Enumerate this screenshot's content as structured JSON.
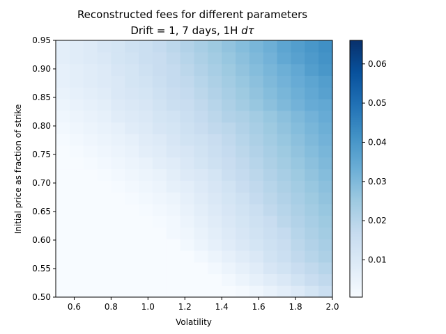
{
  "chart_data": {
    "type": "heatmap",
    "title_line1": "Reconstructed fees for different parameters",
    "title_line2": "Drift = 1, 7 days, 1H ",
    "title_math": "dτ",
    "xlabel": "Volatility",
    "ylabel": "Initial price as fraction of strike",
    "xlim": [
      0.5,
      2.0
    ],
    "ylim": [
      0.5,
      0.95
    ],
    "xticks": [
      "0.6",
      "0.8",
      "1.0",
      "1.2",
      "1.4",
      "1.6",
      "1.8",
      "2.0"
    ],
    "yticks": [
      "0.50",
      "0.55",
      "0.60",
      "0.65",
      "0.70",
      "0.75",
      "0.80",
      "0.85",
      "0.90",
      "0.95"
    ],
    "colormap": "Blues",
    "vmin": 0.0005,
    "vmax": 0.066,
    "colorbar_ticks": [
      "0.01",
      "0.02",
      "0.03",
      "0.04",
      "0.05",
      "0.06"
    ],
    "grid": false,
    "x_bins": 20,
    "y_bins": 22,
    "values_rows_bottom_to_top": [
      [
        0.0005,
        0.0005,
        0.0005,
        0.0005,
        0.0005,
        0.0005,
        0.0005,
        0.0005,
        0.0005,
        0.0005,
        0.0005,
        0.0005,
        0.0005,
        0.0015,
        0.003,
        0.005,
        0.007,
        0.009,
        0.012,
        0.015
      ],
      [
        0.0005,
        0.0005,
        0.0005,
        0.0005,
        0.0005,
        0.0005,
        0.0005,
        0.0005,
        0.0005,
        0.0005,
        0.0005,
        0.0005,
        0.002,
        0.004,
        0.006,
        0.008,
        0.01,
        0.013,
        0.016,
        0.018
      ],
      [
        0.0005,
        0.0005,
        0.0005,
        0.0005,
        0.0005,
        0.0005,
        0.0005,
        0.0005,
        0.0005,
        0.0005,
        0.0005,
        0.002,
        0.004,
        0.006,
        0.008,
        0.011,
        0.013,
        0.016,
        0.018,
        0.02
      ],
      [
        0.0005,
        0.0005,
        0.0005,
        0.0005,
        0.0005,
        0.0005,
        0.0005,
        0.0005,
        0.0005,
        0.0005,
        0.002,
        0.004,
        0.006,
        0.008,
        0.01,
        0.013,
        0.015,
        0.018,
        0.02,
        0.022
      ],
      [
        0.0005,
        0.0005,
        0.0005,
        0.0005,
        0.0005,
        0.0005,
        0.0005,
        0.0005,
        0.0005,
        0.002,
        0.004,
        0.006,
        0.008,
        0.01,
        0.012,
        0.014,
        0.016,
        0.019,
        0.021,
        0.023
      ],
      [
        0.0005,
        0.0005,
        0.0005,
        0.0005,
        0.0005,
        0.0005,
        0.0005,
        0.0005,
        0.002,
        0.003,
        0.005,
        0.007,
        0.009,
        0.011,
        0.013,
        0.015,
        0.017,
        0.02,
        0.022,
        0.024
      ],
      [
        0.0005,
        0.0005,
        0.0005,
        0.0005,
        0.0005,
        0.0005,
        0.0005,
        0.001,
        0.002,
        0.004,
        0.006,
        0.008,
        0.01,
        0.012,
        0.014,
        0.016,
        0.019,
        0.021,
        0.023,
        0.025
      ],
      [
        0.0005,
        0.0005,
        0.0005,
        0.0005,
        0.0005,
        0.0005,
        0.001,
        0.002,
        0.003,
        0.005,
        0.007,
        0.009,
        0.011,
        0.013,
        0.015,
        0.018,
        0.02,
        0.022,
        0.024,
        0.026
      ],
      [
        0.0005,
        0.0005,
        0.0005,
        0.0005,
        0.0005,
        0.001,
        0.002,
        0.003,
        0.004,
        0.006,
        0.008,
        0.01,
        0.012,
        0.014,
        0.017,
        0.019,
        0.021,
        0.023,
        0.025,
        0.027
      ],
      [
        0.0005,
        0.0005,
        0.0005,
        0.0005,
        0.001,
        0.002,
        0.003,
        0.004,
        0.006,
        0.007,
        0.009,
        0.011,
        0.013,
        0.016,
        0.018,
        0.02,
        0.022,
        0.024,
        0.026,
        0.028
      ],
      [
        0.0005,
        0.0005,
        0.0005,
        0.001,
        0.002,
        0.003,
        0.004,
        0.005,
        0.007,
        0.009,
        0.01,
        0.012,
        0.015,
        0.017,
        0.019,
        0.021,
        0.023,
        0.025,
        0.027,
        0.029
      ],
      [
        0.0005,
        0.0005,
        0.001,
        0.002,
        0.003,
        0.004,
        0.005,
        0.007,
        0.008,
        0.01,
        0.012,
        0.014,
        0.016,
        0.018,
        0.02,
        0.022,
        0.024,
        0.026,
        0.028,
        0.03
      ],
      [
        0.0005,
        0.001,
        0.002,
        0.003,
        0.004,
        0.005,
        0.007,
        0.008,
        0.01,
        0.011,
        0.013,
        0.015,
        0.017,
        0.019,
        0.021,
        0.023,
        0.025,
        0.027,
        0.029,
        0.031
      ],
      [
        0.001,
        0.002,
        0.003,
        0.004,
        0.005,
        0.006,
        0.008,
        0.009,
        0.011,
        0.013,
        0.014,
        0.016,
        0.018,
        0.02,
        0.022,
        0.024,
        0.026,
        0.028,
        0.03,
        0.032
      ],
      [
        0.002,
        0.003,
        0.004,
        0.005,
        0.006,
        0.008,
        0.009,
        0.011,
        0.012,
        0.014,
        0.016,
        0.018,
        0.019,
        0.021,
        0.023,
        0.025,
        0.027,
        0.029,
        0.031,
        0.033
      ],
      [
        0.003,
        0.004,
        0.005,
        0.006,
        0.008,
        0.009,
        0.01,
        0.012,
        0.013,
        0.015,
        0.017,
        0.019,
        0.021,
        0.022,
        0.024,
        0.026,
        0.028,
        0.03,
        0.032,
        0.034
      ],
      [
        0.004,
        0.005,
        0.006,
        0.007,
        0.009,
        0.01,
        0.011,
        0.013,
        0.015,
        0.016,
        0.018,
        0.02,
        0.022,
        0.024,
        0.026,
        0.028,
        0.03,
        0.032,
        0.034,
        0.035
      ],
      [
        0.005,
        0.006,
        0.007,
        0.008,
        0.01,
        0.011,
        0.012,
        0.014,
        0.016,
        0.017,
        0.019,
        0.021,
        0.023,
        0.025,
        0.027,
        0.029,
        0.031,
        0.033,
        0.035,
        0.037
      ],
      [
        0.006,
        0.007,
        0.008,
        0.009,
        0.01,
        0.012,
        0.013,
        0.015,
        0.017,
        0.018,
        0.02,
        0.022,
        0.024,
        0.026,
        0.028,
        0.03,
        0.032,
        0.034,
        0.036,
        0.038
      ],
      [
        0.006,
        0.007,
        0.008,
        0.009,
        0.011,
        0.012,
        0.014,
        0.016,
        0.017,
        0.019,
        0.021,
        0.023,
        0.025,
        0.027,
        0.029,
        0.031,
        0.033,
        0.035,
        0.038,
        0.04
      ],
      [
        0.007,
        0.008,
        0.009,
        0.01,
        0.012,
        0.013,
        0.015,
        0.016,
        0.018,
        0.02,
        0.022,
        0.024,
        0.026,
        0.028,
        0.03,
        0.032,
        0.035,
        0.037,
        0.039,
        0.041
      ],
      [
        0.007,
        0.008,
        0.009,
        0.011,
        0.012,
        0.014,
        0.015,
        0.017,
        0.019,
        0.021,
        0.023,
        0.025,
        0.027,
        0.029,
        0.031,
        0.033,
        0.036,
        0.038,
        0.04,
        0.042
      ]
    ]
  }
}
